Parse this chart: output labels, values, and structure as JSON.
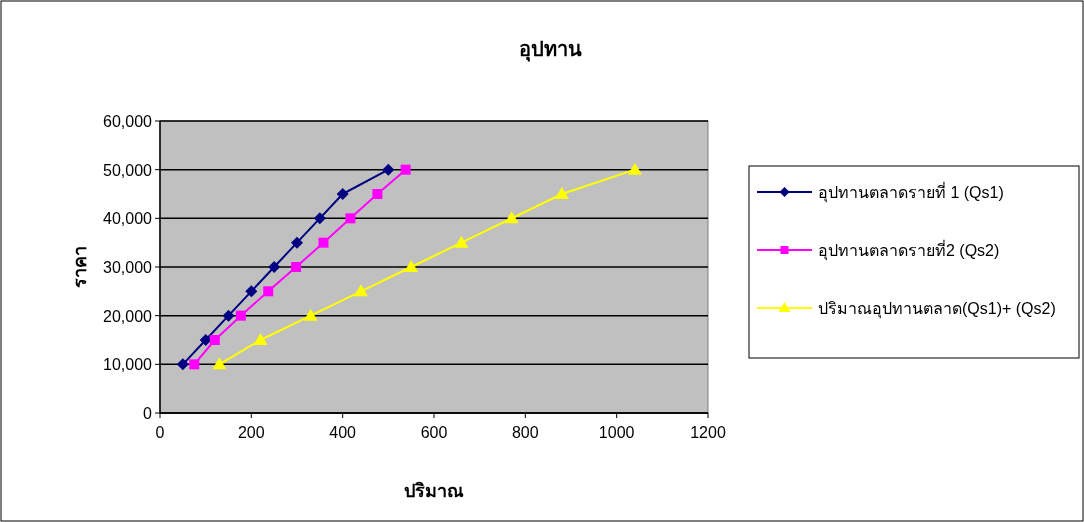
{
  "chart_data": {
    "type": "line",
    "title": "อุปทาน",
    "xlabel": "ปริมาณ",
    "ylabel": "ราคา",
    "xlim": [
      0,
      1200
    ],
    "xticks": [
      0,
      200,
      400,
      600,
      800,
      1000,
      1200
    ],
    "ylim": [
      0,
      60000
    ],
    "yticks": [
      0,
      {
        "value": 10000,
        "label": "10,000"
      },
      {
        "value": 20000,
        "label": "20,000"
      },
      {
        "value": 30000,
        "label": "30,000"
      },
      {
        "value": 40000,
        "label": "40,000"
      },
      {
        "value": 50000,
        "label": "50,000"
      },
      {
        "value": 60000,
        "label": "60,000"
      }
    ],
    "grid": "y",
    "legend": "right",
    "series": [
      {
        "name": "อุปทานตลาดรายที่ 1 (Qs1)",
        "color": "#000080",
        "marker": "diamond",
        "x": [
          50,
          100,
          150,
          200,
          250,
          300,
          350,
          400,
          500
        ],
        "values": [
          10000,
          15000,
          20000,
          25000,
          30000,
          35000,
          40000,
          45000,
          50000
        ]
      },
      {
        "name": "อุปทานตลาดรายที่2 (Qs2)",
        "color": "#ff00ff",
        "marker": "square",
        "x": [
          75,
          120,
          177,
          237,
          298,
          358,
          417,
          476,
          538
        ],
        "values": [
          10000,
          15000,
          20000,
          25000,
          30000,
          35000,
          40000,
          45000,
          50000
        ]
      },
      {
        "name": "ปริมาณอุปทานตลาด(Qs1)+ (Qs2)",
        "color": "#ffff00",
        "marker": "triangle",
        "x": [
          130,
          220,
          330,
          440,
          550,
          660,
          770,
          880,
          1040
        ],
        "values": [
          10000,
          15000,
          20000,
          25000,
          30000,
          35000,
          40000,
          45000,
          50000
        ]
      }
    ]
  }
}
